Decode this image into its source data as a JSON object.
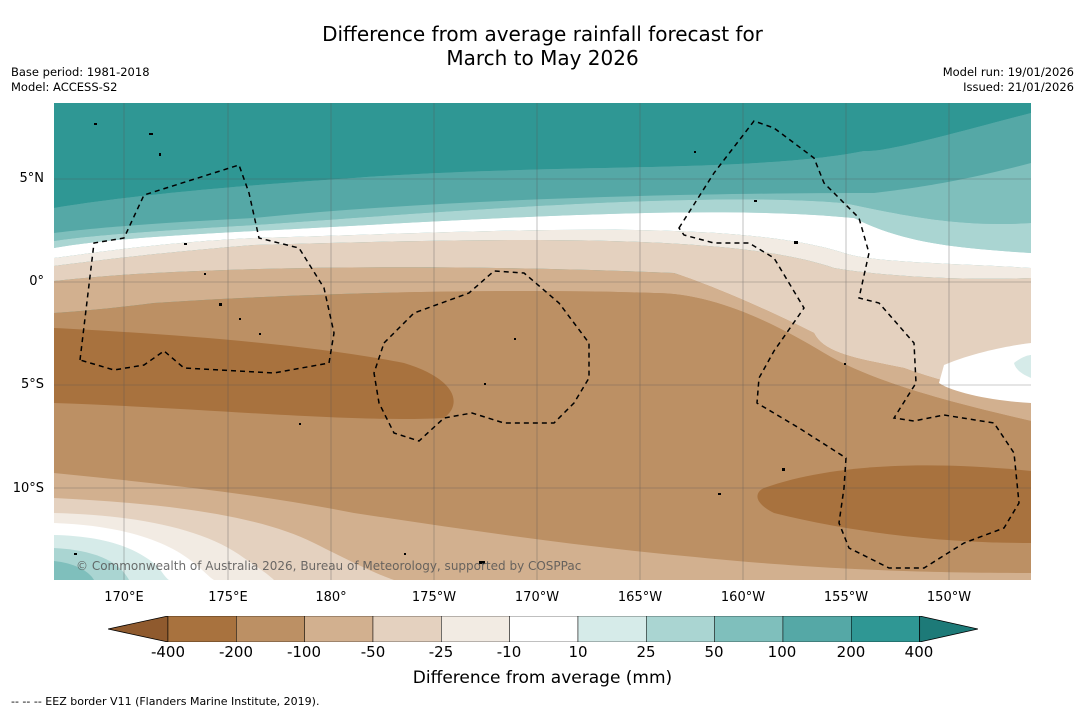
{
  "header": {
    "title_line1": "Difference from average rainfall forecast for",
    "title_line2": "March to May 2026",
    "base_period": "Base period: 1981-2018",
    "model": "Model: ACCESS-S2",
    "model_run": "Model run: 19/01/2026",
    "issued": "Issued: 21/01/2026"
  },
  "map": {
    "lat_labels": [
      "5°N",
      "0°",
      "5°S",
      "10°S"
    ],
    "lon_labels": [
      "170°E",
      "175°E",
      "180°",
      "175°W",
      "170°W",
      "165°W",
      "160°W",
      "155°W",
      "150°W"
    ],
    "copyright": "© Commonwealth of Australia 2026, Bureau of Meteorology, supported by COSPPac"
  },
  "legend": {
    "ticks": [
      "-400",
      "-200",
      "-100",
      "-50",
      "-25",
      "-10",
      "10",
      "25",
      "50",
      "100",
      "200",
      "400"
    ],
    "colors": [
      "#8f5a2e",
      "#a8723e",
      "#bc9064",
      "#d2b08f",
      "#e4d1bf",
      "#f2ebe3",
      "#ffffff",
      "#d6ebe9",
      "#aad5d2",
      "#7fbfbc",
      "#55a8a6",
      "#2f9794",
      "#1d7a78"
    ],
    "title": "Difference from average (mm)"
  },
  "footer": {
    "eez_note": "--  --  -- EEZ border V11 (Flanders Marine Institute, 2019)."
  }
}
